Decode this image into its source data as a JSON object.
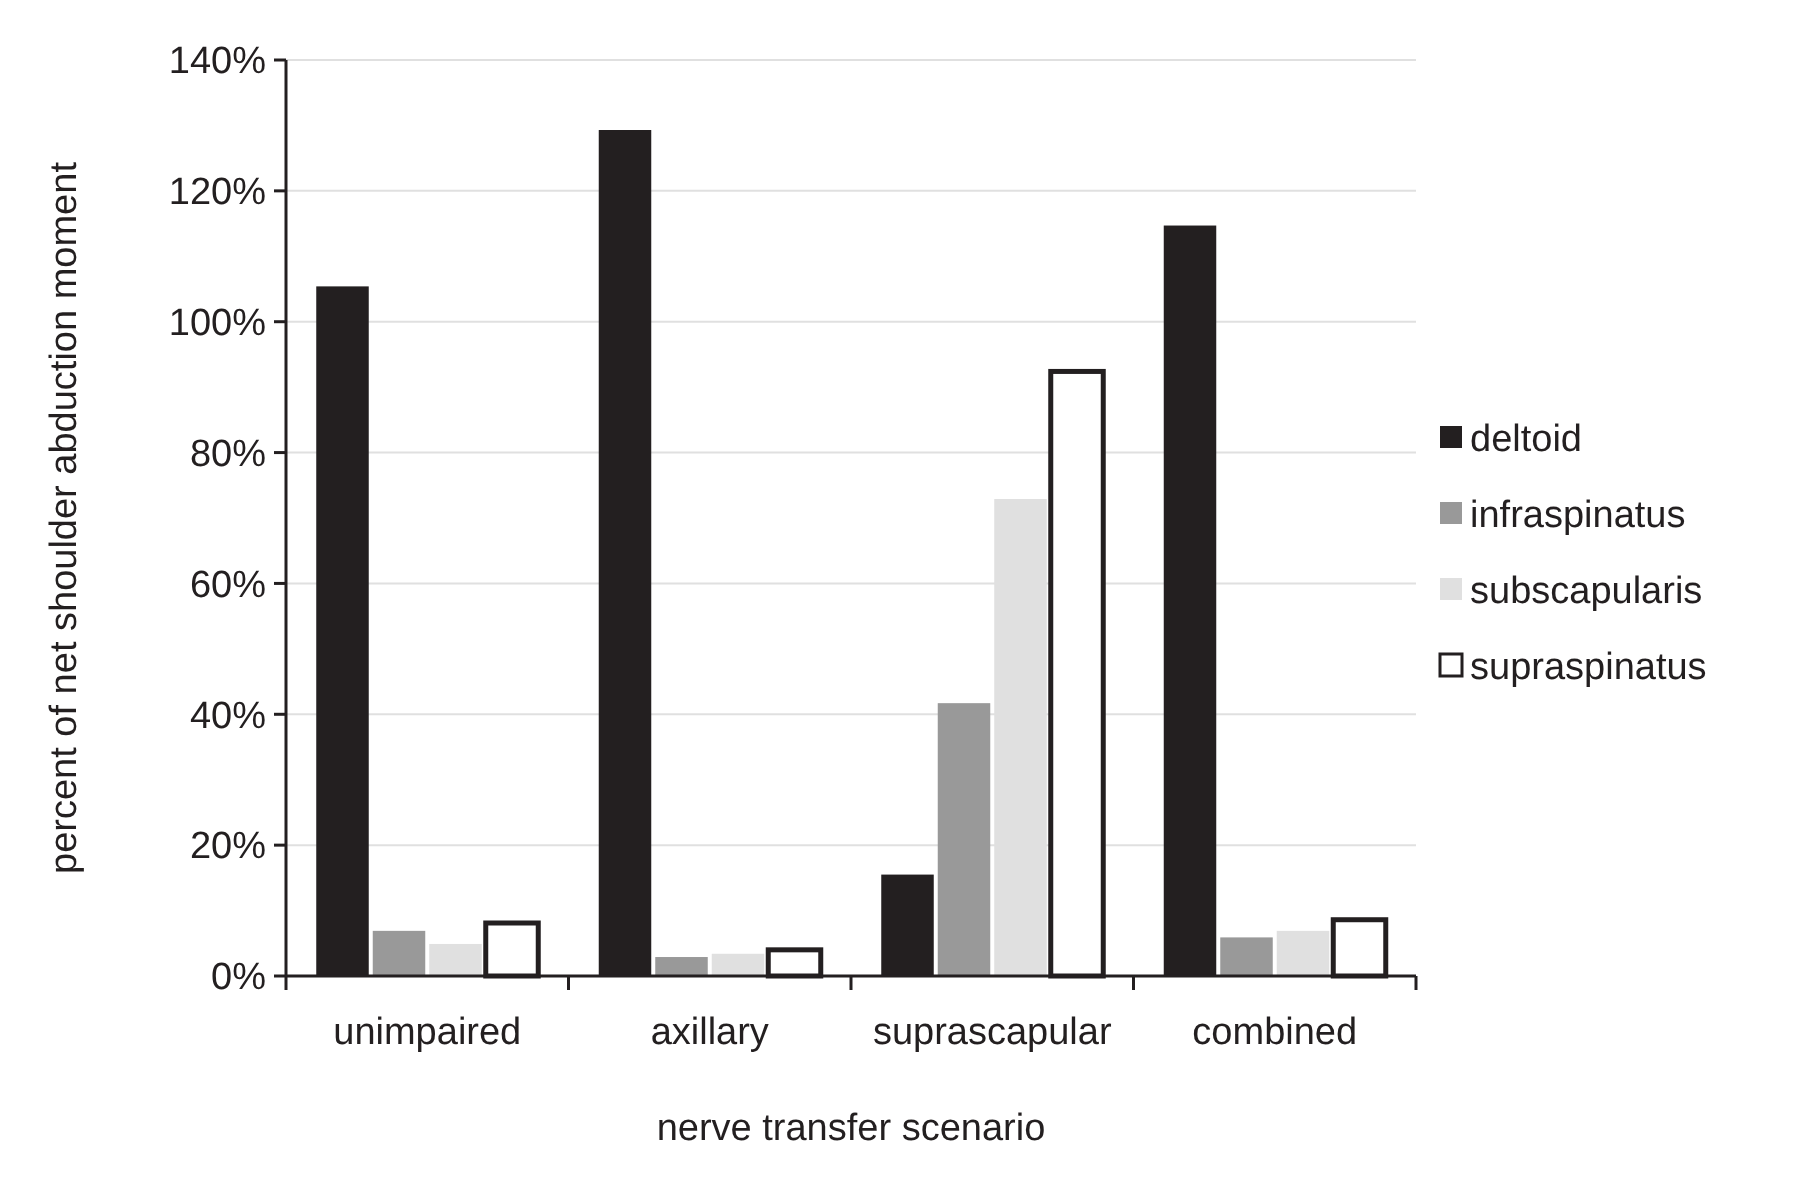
{
  "chart_data": {
    "type": "bar",
    "xlabel": "nerve transfer scenario",
    "ylabel": "percent of net shoulder abduction moment",
    "categories": [
      "unimpaired",
      "axillary",
      "suprascapular",
      "combined"
    ],
    "series": [
      {
        "name": "deltoid",
        "color": "#231f20",
        "values": [
          105.4,
          129.3,
          15.5,
          114.7
        ]
      },
      {
        "name": "infraspinatus",
        "color": "#999999",
        "values": [
          6.9,
          2.9,
          41.7,
          5.9
        ]
      },
      {
        "name": "subscapularis",
        "color": "#e0e0e0",
        "values": [
          4.9,
          3.4,
          72.9,
          6.9
        ]
      },
      {
        "name": "supraspinatus",
        "color": "#ffffff",
        "values": [
          8.1,
          4.0,
          92.4,
          8.6
        ]
      }
    ],
    "ylim": [
      0,
      140
    ],
    "yticks": [
      {
        "value": 0,
        "label": "0%"
      },
      {
        "value": 20,
        "label": "20%"
      },
      {
        "value": 40,
        "label": "40%"
      },
      {
        "value": 60,
        "label": "60%"
      },
      {
        "value": 80,
        "label": "80%"
      },
      {
        "value": 100,
        "label": "100%"
      },
      {
        "value": 120,
        "label": "120%"
      },
      {
        "value": 140,
        "label": "140%"
      }
    ],
    "grid": "y",
    "legend": "right"
  }
}
